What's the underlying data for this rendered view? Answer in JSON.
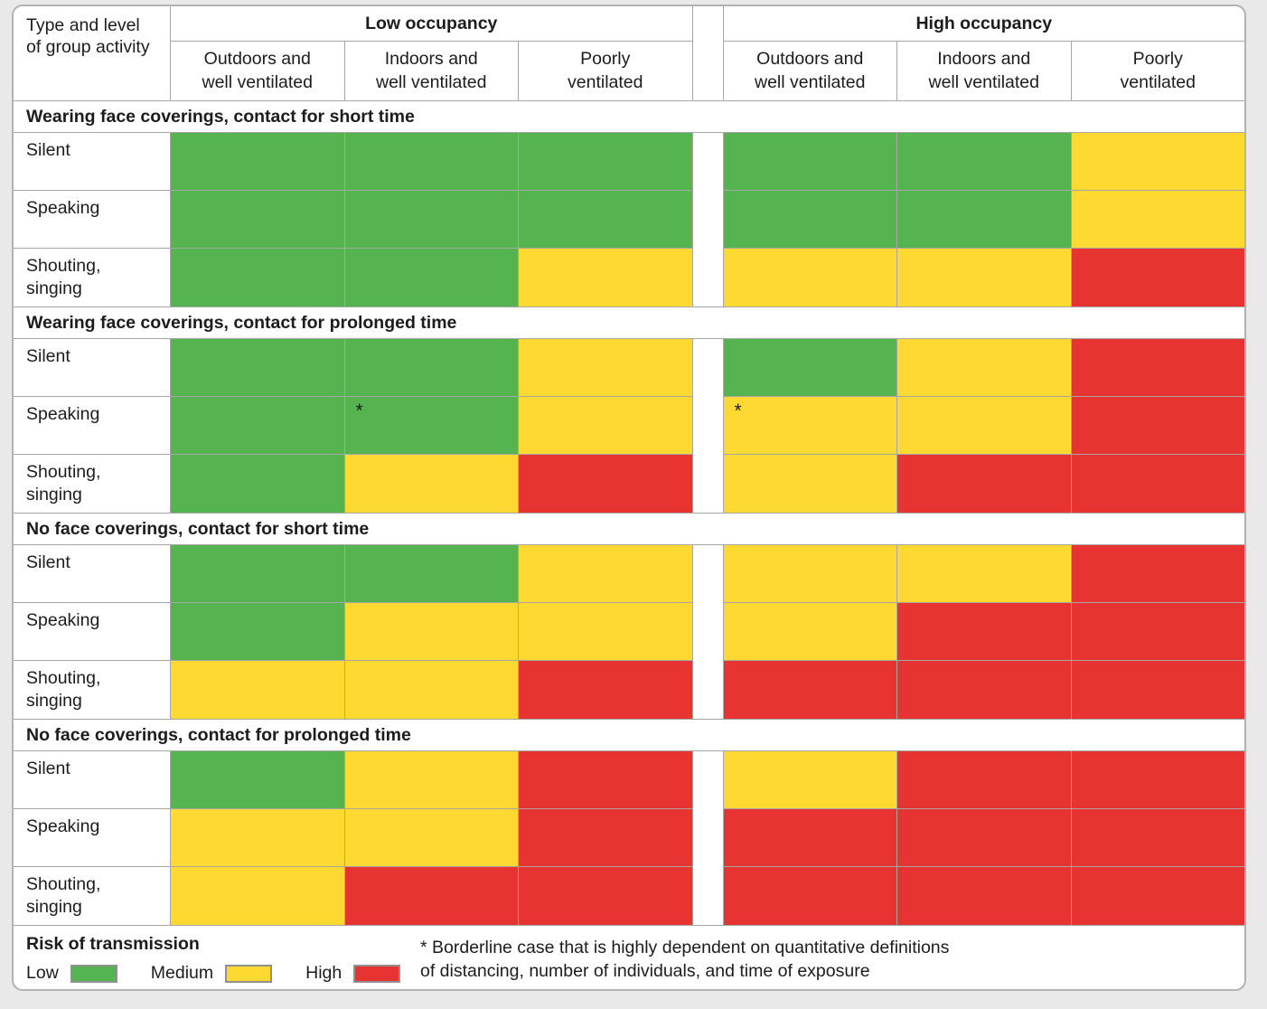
{
  "chart_data": {
    "type": "heatmap",
    "title": "Risk of transmission",
    "corner_label": "Type and level\nof group activity",
    "col_groups": [
      "Low occupancy",
      "High occupancy"
    ],
    "columns": [
      "Outdoors and\nwell ventilated",
      "Indoors and\nwell ventilated",
      "Poorly\nventilated"
    ],
    "sections": [
      {
        "title": "Wearing face coverings, contact for short time",
        "rows": [
          {
            "label": "Silent",
            "cells": [
              "low",
              "low",
              "low",
              "low",
              "low",
              "medium"
            ]
          },
          {
            "label": "Speaking",
            "cells": [
              "low",
              "low",
              "low",
              "low",
              "low",
              "medium"
            ]
          },
          {
            "label": "Shouting, singing",
            "cells": [
              "low",
              "low",
              "medium",
              "medium",
              "medium",
              "high"
            ]
          }
        ]
      },
      {
        "title": "Wearing face coverings, contact for prolonged time",
        "rows": [
          {
            "label": "Silent",
            "cells": [
              "low",
              "low",
              "medium",
              "low",
              "medium",
              "high"
            ]
          },
          {
            "label": "Speaking",
            "cells": [
              "low",
              "low*",
              "medium",
              "medium*",
              "medium",
              "high"
            ]
          },
          {
            "label": "Shouting, singing",
            "cells": [
              "low",
              "medium",
              "high",
              "medium",
              "high",
              "high"
            ]
          }
        ]
      },
      {
        "title": "No face coverings, contact for short time",
        "rows": [
          {
            "label": "Silent",
            "cells": [
              "low",
              "low",
              "medium",
              "medium",
              "medium",
              "high"
            ]
          },
          {
            "label": "Speaking",
            "cells": [
              "low",
              "medium",
              "medium",
              "medium",
              "high",
              "high"
            ]
          },
          {
            "label": "Shouting, singing",
            "cells": [
              "medium",
              "medium",
              "high",
              "high",
              "high",
              "high"
            ]
          }
        ]
      },
      {
        "title": "No face coverings, contact for prolonged time",
        "rows": [
          {
            "label": "Silent",
            "cells": [
              "low",
              "medium",
              "high",
              "medium",
              "high",
              "high"
            ]
          },
          {
            "label": "Speaking",
            "cells": [
              "medium",
              "medium",
              "high",
              "high",
              "high",
              "high"
            ]
          },
          {
            "label": "Shouting, singing",
            "cells": [
              "medium",
              "high",
              "high",
              "high",
              "high",
              "high"
            ]
          }
        ]
      }
    ],
    "legend_title": "Risk of transmission",
    "legend_items": [
      {
        "label": "Low",
        "risk": "low"
      },
      {
        "label": "Medium",
        "risk": "medium"
      },
      {
        "label": "High",
        "risk": "high"
      }
    ],
    "colors": {
      "low": "#55b44f",
      "medium": "#fed932",
      "high": "#e73331"
    },
    "asterisk": "*",
    "footnote": "* Borderline case that is highly dependent on quantitative definitions\nof distancing, number of individuals, and time of exposure"
  }
}
